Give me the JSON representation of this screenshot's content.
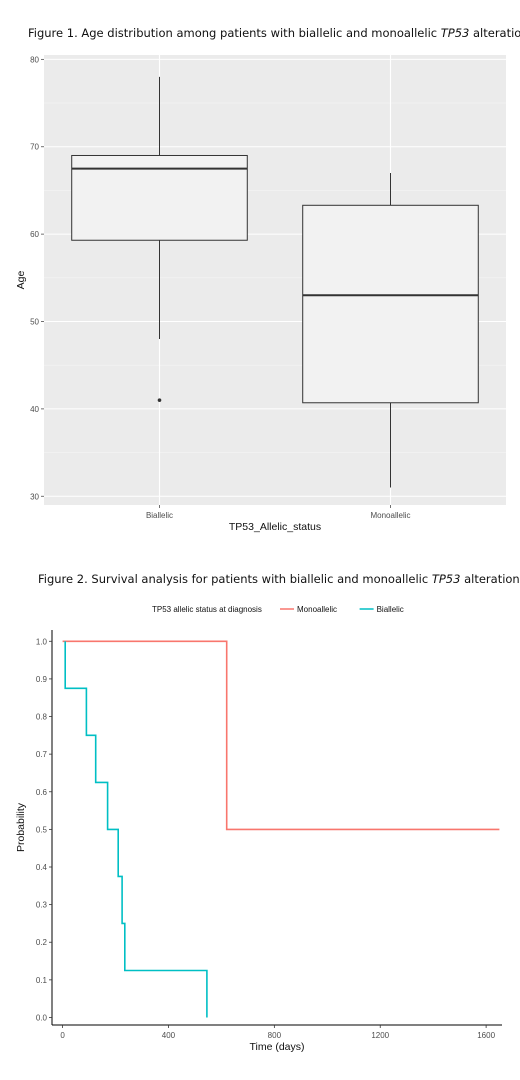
{
  "figure1": {
    "title_prefix": "Figure 1. Age distribution among patients with biallelic and monoallelic ",
    "title_gene": "TP53",
    "title_suffix": " alterations"
  },
  "figure2": {
    "title_prefix": "Figure 2. Survival analysis for patients with biallelic and monoallelic ",
    "title_gene": "TP53",
    "title_suffix": " alterations"
  },
  "chart_data": [
    {
      "type": "boxplot",
      "xlabel": "TP53_Allelic_status",
      "ylabel": "Age",
      "ylim": [
        29,
        80.5
      ],
      "yticks": [
        30,
        40,
        50,
        60,
        70,
        80
      ],
      "categories": [
        "Biallelic",
        "Monoallelic"
      ],
      "boxes": [
        {
          "category": "Biallelic",
          "whisker_low": 48,
          "q1": 59.3,
          "median": 67.5,
          "q3": 69,
          "whisker_high": 78,
          "outliers": [
            41
          ]
        },
        {
          "category": "Monoallelic",
          "whisker_low": 31,
          "q1": 40.7,
          "median": 53,
          "q3": 63.3,
          "whisker_high": 67,
          "outliers": []
        }
      ],
      "grid": true,
      "background": "#ebebeb",
      "box_fill": "#f2f2f2",
      "box_stroke": "#333333"
    },
    {
      "type": "line",
      "subtype": "kaplan-meier step",
      "xlabel": "Time (days)",
      "ylabel": "Probability",
      "xlim": [
        -40,
        1660
      ],
      "ylim": [
        -0.02,
        1.03
      ],
      "xticks": [
        0,
        400,
        800,
        1200,
        1600
      ],
      "yticks": [
        0.0,
        0.1,
        0.2,
        0.3,
        0.4,
        0.5,
        0.6,
        0.7,
        0.8,
        0.9,
        1.0
      ],
      "legend_title": "TP53 allelic status at diagnosis",
      "legend_position": "top",
      "series": [
        {
          "name": "Monoallelic",
          "color": "#f8766d",
          "x": [
            0,
            620,
            620,
            1650
          ],
          "y": [
            1.0,
            1.0,
            0.5,
            0.5
          ]
        },
        {
          "name": "Biallelic",
          "color": "#00bfc4",
          "x": [
            10,
            10,
            90,
            90,
            125,
            125,
            170,
            170,
            210,
            210,
            225,
            225,
            235,
            235,
            545,
            545
          ],
          "y": [
            1.0,
            0.875,
            0.875,
            0.75,
            0.75,
            0.625,
            0.625,
            0.5,
            0.5,
            0.375,
            0.375,
            0.25,
            0.25,
            0.125,
            0.125,
            0.0
          ]
        }
      ]
    }
  ]
}
